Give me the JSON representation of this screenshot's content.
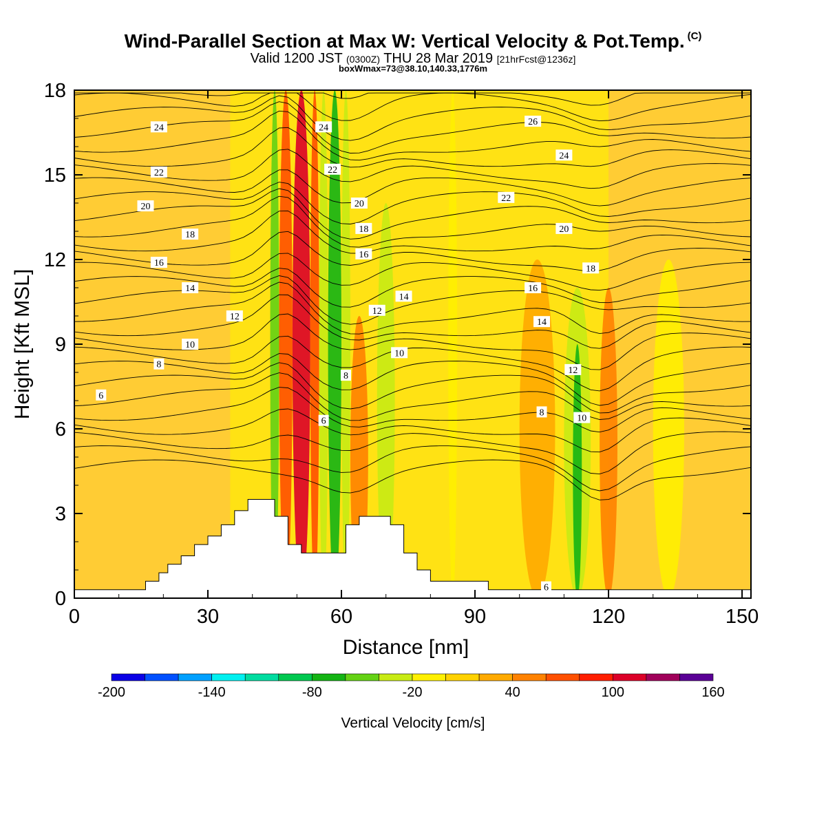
{
  "header": {
    "title": "Wind-Parallel Section at Max W: Vertical Velocity & Pot.Temp.",
    "title_mark": "(C)",
    "valid_prefix": "Valid 1200 JST",
    "valid_utc": "(0300Z)",
    "valid_date": "THU 28 Mar 2019",
    "forecast": "[21hrFcst@1236z]",
    "boxwmax": "boxWmax=73@38.10,140.33,1776m"
  },
  "chart_data": {
    "type": "heatmap",
    "xlabel": "Distance [nm]",
    "ylabel": "Height [Kft MSL]",
    "xlim": [
      0,
      152
    ],
    "ylim": [
      0,
      18
    ],
    "xticks": [
      0,
      30,
      60,
      90,
      120,
      150
    ],
    "yticks": [
      0,
      3,
      6,
      9,
      12,
      15,
      18
    ],
    "grid": false,
    "colorbar": {
      "label": "Vertical Velocity [cm/s]",
      "min": -200,
      "max": 160,
      "step": 20,
      "tick_labels": [
        "-200",
        "-140",
        "-80",
        "-20",
        "40",
        "100",
        "160"
      ],
      "tick_values": [
        -200,
        -140,
        -80,
        -20,
        40,
        100,
        160
      ],
      "colors": [
        "#0a00e6",
        "#0050ff",
        "#00a0ff",
        "#00f0f0",
        "#00dca0",
        "#00c850",
        "#14b414",
        "#64d214",
        "#c8eb14",
        "#fff000",
        "#ffd200",
        "#ffaa00",
        "#ff8200",
        "#ff5000",
        "#ff1e00",
        "#dc0028",
        "#a0005a",
        "#5a0096"
      ],
      "position": "bottom"
    },
    "shading_bands": [
      {
        "x": [
          44,
          46
        ],
        "z_top": 18,
        "value": -60
      },
      {
        "x": [
          46,
          49
        ],
        "z_top": 18,
        "value": 70
      },
      {
        "x": [
          49,
          53
        ],
        "z_top": 18,
        "value": 110
      },
      {
        "x": [
          53,
          55
        ],
        "z_top": 18,
        "value": 60
      },
      {
        "x": [
          55,
          57
        ],
        "z_top": 18,
        "value": -40
      },
      {
        "x": [
          57,
          60
        ],
        "z_top": 18,
        "value": -80
      },
      {
        "x": [
          60,
          62
        ],
        "z_top": 18,
        "value": -30
      },
      {
        "x": [
          62,
          66
        ],
        "z_top": 10,
        "value": 50
      },
      {
        "x": [
          68,
          72
        ],
        "z_top": 14,
        "value": -30
      },
      {
        "x": [
          84,
          86
        ],
        "z_top": 18,
        "value": -20
      },
      {
        "x": [
          100,
          108
        ],
        "z_top": 12,
        "value": 30
      },
      {
        "x": [
          110,
          116
        ],
        "z_top": 11,
        "value": -40
      },
      {
        "x": [
          112,
          114
        ],
        "z_top": 9,
        "value": -80
      },
      {
        "x": [
          118,
          122
        ],
        "z_top": 11,
        "value": 40
      },
      {
        "x": [
          130,
          137
        ],
        "z_top": 12,
        "value": -20
      }
    ],
    "theta_contours": {
      "label_positions": [
        {
          "label": "24",
          "x": 19,
          "y": 16.7
        },
        {
          "label": "22",
          "x": 19,
          "y": 15.1
        },
        {
          "label": "20",
          "x": 16,
          "y": 13.9
        },
        {
          "label": "18",
          "x": 26,
          "y": 12.9
        },
        {
          "label": "16",
          "x": 19,
          "y": 11.9
        },
        {
          "label": "14",
          "x": 26,
          "y": 11.0
        },
        {
          "label": "12",
          "x": 36,
          "y": 10.0
        },
        {
          "label": "10",
          "x": 26,
          "y": 9.0
        },
        {
          "label": "8",
          "x": 19,
          "y": 8.3
        },
        {
          "label": "6",
          "x": 6,
          "y": 7.2
        },
        {
          "label": "24",
          "x": 56,
          "y": 16.7
        },
        {
          "label": "22",
          "x": 58,
          "y": 15.2
        },
        {
          "label": "20",
          "x": 64,
          "y": 14.0
        },
        {
          "label": "18",
          "x": 65,
          "y": 13.1
        },
        {
          "label": "16",
          "x": 65,
          "y": 12.2
        },
        {
          "label": "14",
          "x": 74,
          "y": 10.7
        },
        {
          "label": "12",
          "x": 68,
          "y": 10.2
        },
        {
          "label": "10",
          "x": 73,
          "y": 8.7
        },
        {
          "label": "8",
          "x": 61,
          "y": 7.9
        },
        {
          "label": "6",
          "x": 56,
          "y": 6.3
        },
        {
          "label": "26",
          "x": 103,
          "y": 16.9
        },
        {
          "label": "24",
          "x": 110,
          "y": 15.7
        },
        {
          "label": "22",
          "x": 97,
          "y": 14.2
        },
        {
          "label": "20",
          "x": 110,
          "y": 13.1
        },
        {
          "label": "18",
          "x": 116,
          "y": 11.7
        },
        {
          "label": "16",
          "x": 103,
          "y": 11.0
        },
        {
          "label": "14",
          "x": 105,
          "y": 9.8
        },
        {
          "label": "12",
          "x": 112,
          "y": 8.1
        },
        {
          "label": "10",
          "x": 114,
          "y": 6.4
        },
        {
          "label": "8",
          "x": 105,
          "y": 6.6
        },
        {
          "label": "6",
          "x": 106,
          "y": 0.4
        }
      ]
    },
    "terrain": [
      [
        0,
        0.3
      ],
      [
        16,
        0.3
      ],
      [
        16,
        0.6
      ],
      [
        19,
        0.6
      ],
      [
        19,
        0.9
      ],
      [
        21,
        0.9
      ],
      [
        21,
        1.2
      ],
      [
        24,
        1.2
      ],
      [
        24,
        1.5
      ],
      [
        27,
        1.5
      ],
      [
        27,
        1.9
      ],
      [
        30,
        1.9
      ],
      [
        30,
        2.2
      ],
      [
        33,
        2.2
      ],
      [
        33,
        2.6
      ],
      [
        36,
        2.6
      ],
      [
        36,
        3.1
      ],
      [
        39,
        3.1
      ],
      [
        39,
        3.5
      ],
      [
        45,
        3.5
      ],
      [
        45,
        2.9
      ],
      [
        48,
        2.9
      ],
      [
        48,
        1.9
      ],
      [
        51,
        1.9
      ],
      [
        51,
        1.6
      ],
      [
        61,
        1.6
      ],
      [
        61,
        2.6
      ],
      [
        64,
        2.6
      ],
      [
        64,
        2.9
      ],
      [
        71,
        2.9
      ],
      [
        71,
        2.6
      ],
      [
        74,
        2.6
      ],
      [
        74,
        1.6
      ],
      [
        77,
        1.6
      ],
      [
        77,
        1.0
      ],
      [
        80,
        1.0
      ],
      [
        80,
        0.6
      ],
      [
        93,
        0.6
      ],
      [
        93,
        0.3
      ],
      [
        152,
        0.3
      ]
    ]
  }
}
